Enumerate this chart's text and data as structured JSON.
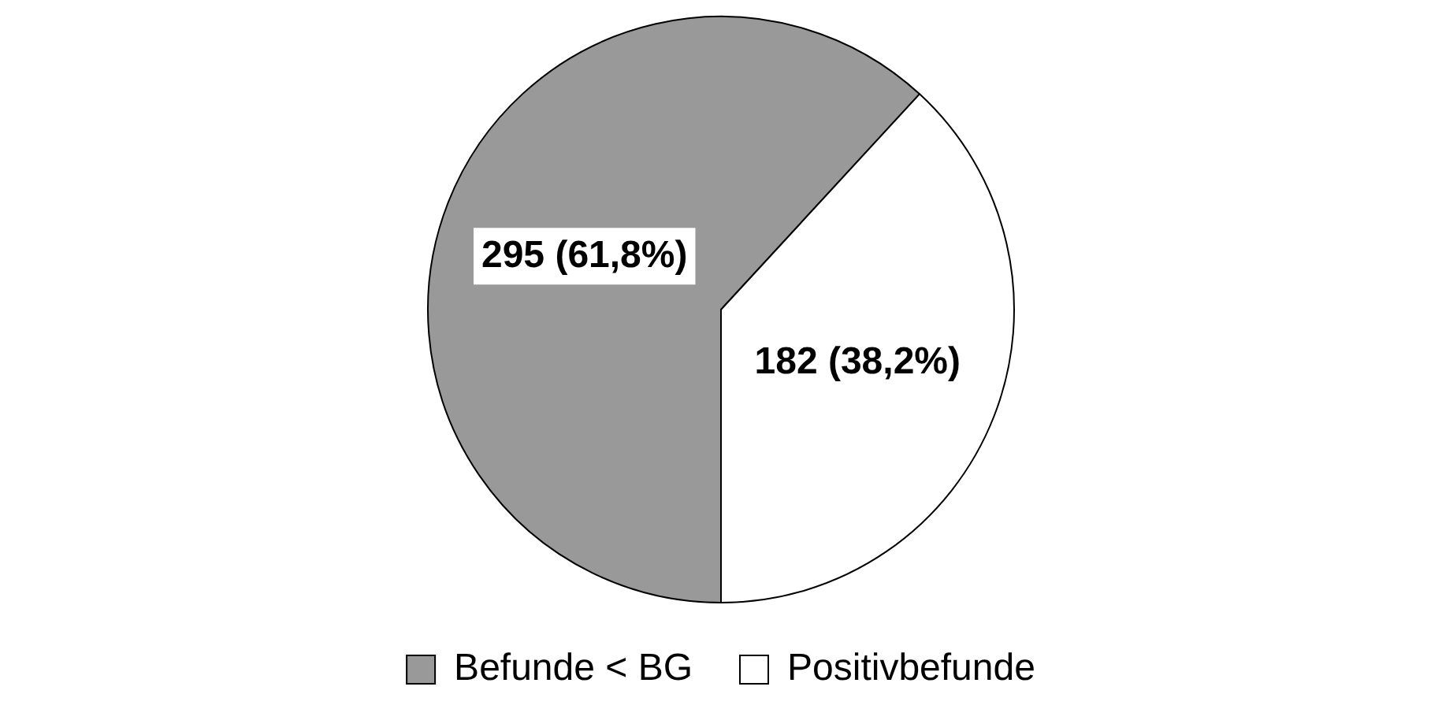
{
  "chart_data": {
    "type": "pie",
    "categories": [
      "Befunde < BG",
      "Positivbefunde"
    ],
    "values": [
      295,
      182
    ],
    "colors": [
      "#999999",
      "#ffffff"
    ],
    "value_labels": [
      "295 (61,8%)",
      "182 (38,2%)"
    ],
    "legend": "bottom"
  }
}
